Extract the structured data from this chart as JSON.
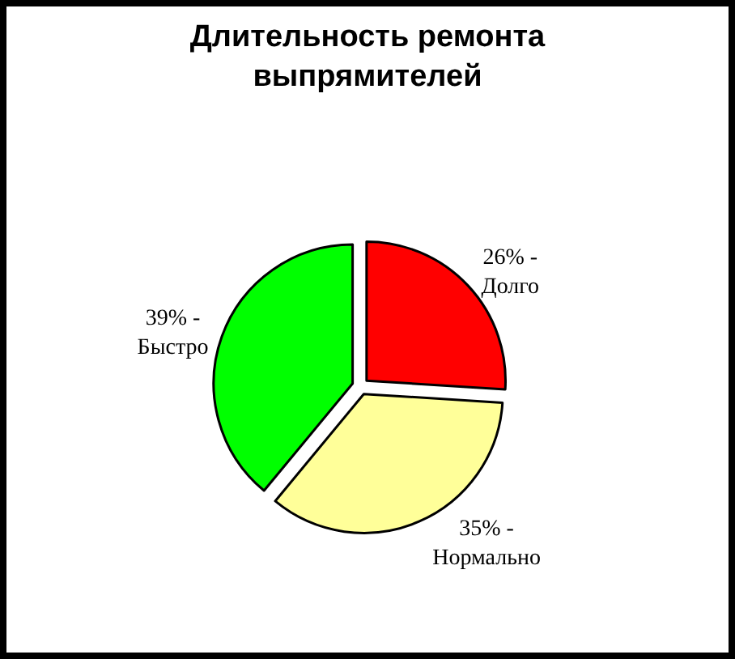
{
  "chart_data": {
    "type": "pie",
    "title": "Длительность ремонта выпрямителей",
    "categories": [
      "Долго",
      "Нормально",
      "Быстро"
    ],
    "values": [
      26,
      35,
      39
    ],
    "colors": [
      "#ff0000",
      "#ffff99",
      "#00ff00"
    ],
    "value_labels": [
      "26% -",
      "35% -",
      "39% -"
    ],
    "legend": false
  }
}
